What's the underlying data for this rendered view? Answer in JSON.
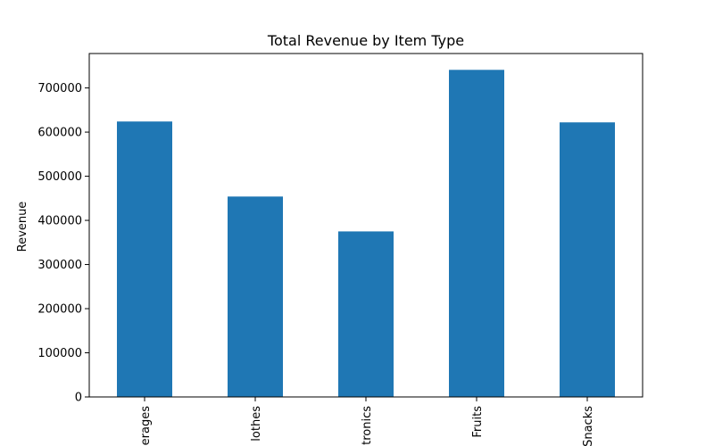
{
  "chart_data": {
    "type": "bar",
    "title": "Total Revenue by Item Type",
    "xlabel": "",
    "ylabel": "Revenue",
    "categories": [
      "Beverages",
      "Clothes",
      "Electronics",
      "Fruits",
      "Snacks"
    ],
    "visible_tick_labels": [
      "erages",
      "lothes",
      "tronics",
      "Fruits",
      "Snacks"
    ],
    "values": [
      624000,
      454000,
      375000,
      741000,
      622000
    ],
    "yticks": [
      0,
      100000,
      200000,
      300000,
      400000,
      500000,
      600000,
      700000
    ],
    "ytick_labels": [
      "0",
      "100000",
      "200000",
      "300000",
      "400000",
      "500000",
      "600000",
      "700000"
    ],
    "ylim": [
      0,
      778000
    ],
    "bar_color": "#1f77b4",
    "grid": false,
    "legend": "none"
  }
}
